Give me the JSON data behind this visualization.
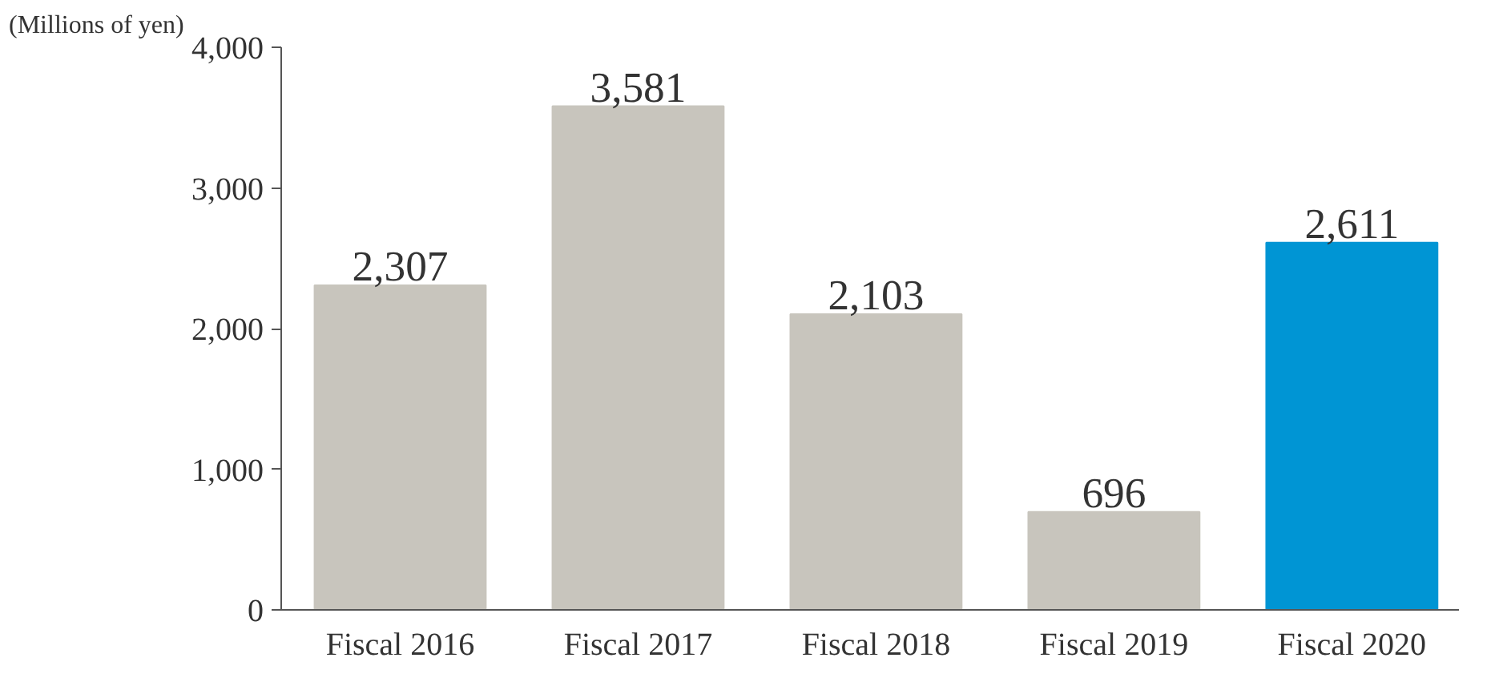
{
  "chart_data": {
    "type": "bar",
    "ylabel": "(Millions of yen)",
    "categories": [
      "Fiscal 2016",
      "Fiscal 2017",
      "Fiscal 2018",
      "Fiscal 2019",
      "Fiscal 2020"
    ],
    "values": [
      2307,
      3581,
      2103,
      696,
      2611
    ],
    "colors": [
      "#c8c5bd",
      "#c8c5bd",
      "#c8c5bd",
      "#c8c5bd",
      "#0095d4"
    ],
    "ylim": [
      0,
      4000
    ],
    "yticks": [
      0,
      {
        "value": 1000,
        "label": "1,000"
      },
      {
        "value": 2000,
        "label": "2,000"
      },
      {
        "value": 3000,
        "label": "3,000"
      },
      {
        "value": 4000,
        "label": "4,000"
      }
    ],
    "value_labels": [
      "2,307",
      "3,581",
      "2,103",
      "696",
      "2,611"
    ],
    "grid": false
  }
}
